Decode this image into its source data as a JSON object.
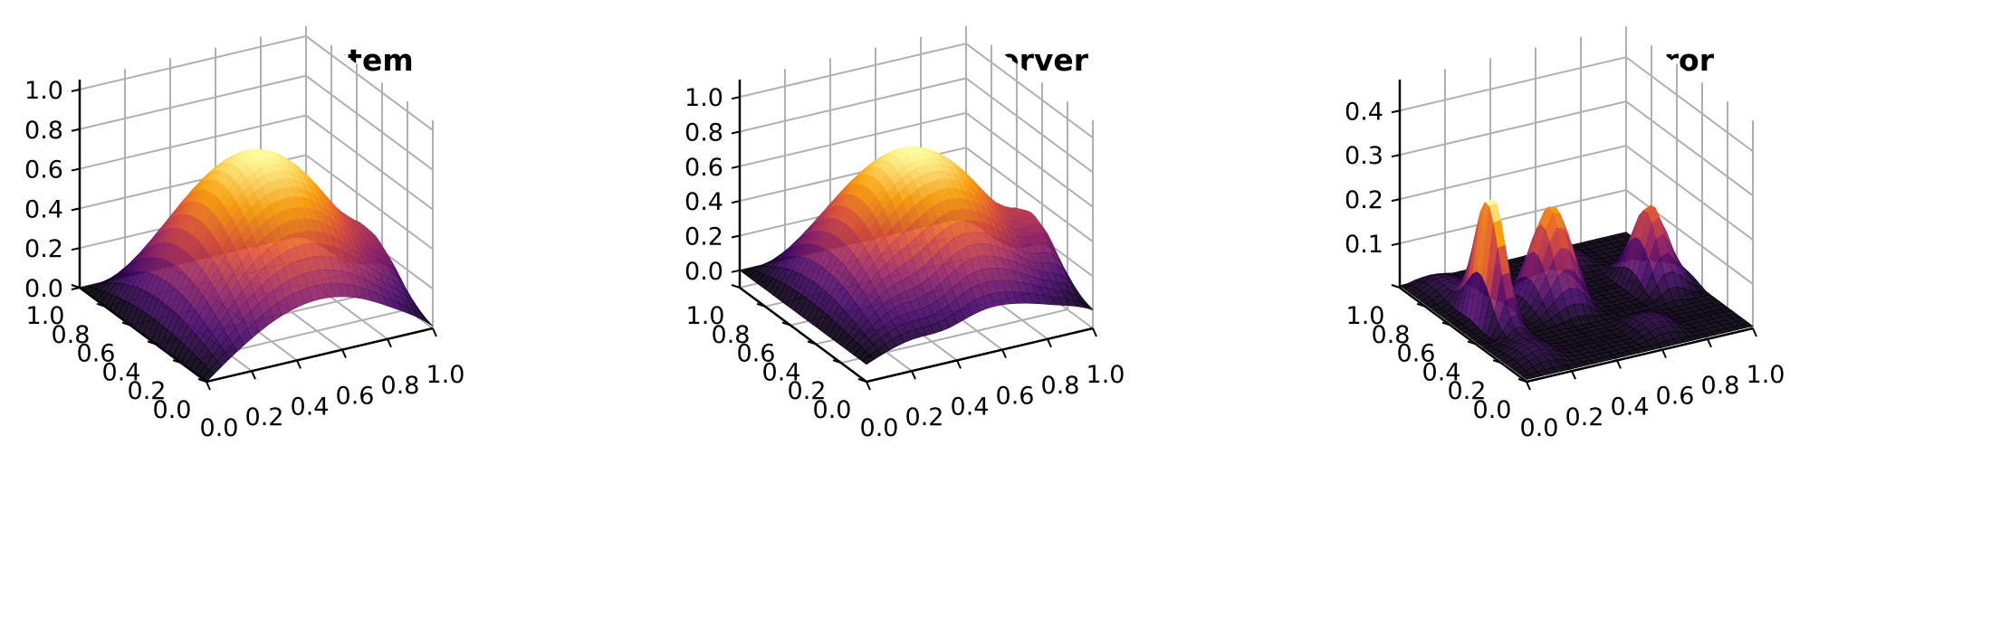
{
  "chart_data": [
    {
      "type": "surface",
      "title": "System",
      "x_ticks": [
        "0.0",
        "0.2",
        "0.4",
        "0.6",
        "0.8",
        "1.0"
      ],
      "y_ticks": [
        "0.0",
        "0.2",
        "0.4",
        "0.6",
        "0.8",
        "1.0"
      ],
      "z_ticks": [
        "0.0",
        "0.2",
        "0.4",
        "0.6",
        "0.8",
        "1.0"
      ],
      "xlim": [
        0,
        1
      ],
      "ylim": [
        0,
        1
      ],
      "zlim": [
        0,
        1.05
      ],
      "grid": true,
      "colormap": [
        "#000004",
        "#420a68",
        "#932667",
        "#dd513a",
        "#fca50a",
        "#fcffa4"
      ],
      "peak_value": 1.0
    },
    {
      "type": "surface",
      "title": "Observer",
      "x_ticks": [
        "0.0",
        "0.2",
        "0.4",
        "0.6",
        "0.8",
        "1.0"
      ],
      "y_ticks": [
        "0.0",
        "0.2",
        "0.4",
        "0.6",
        "0.8",
        "1.0"
      ],
      "z_ticks": [
        "0.0",
        "0.2",
        "0.4",
        "0.6",
        "0.8",
        "1.0"
      ],
      "xlim": [
        0,
        1
      ],
      "ylim": [
        0,
        1
      ],
      "zlim": [
        -0.1,
        1.1
      ],
      "grid": true,
      "colormap": [
        "#000004",
        "#420a68",
        "#932667",
        "#dd513a",
        "#fca50a",
        "#fcffa4"
      ],
      "peak_value": 1.05
    },
    {
      "type": "surface",
      "title": "Error",
      "x_ticks": [
        "0.0",
        "0.2",
        "0.4",
        "0.6",
        "0.8",
        "1.0"
      ],
      "y_ticks": [
        "0.0",
        "0.2",
        "0.4",
        "0.6",
        "0.8",
        "1.0"
      ],
      "z_ticks": [
        "0.1",
        "0.2",
        "0.3",
        "0.4"
      ],
      "xlim": [
        0,
        1
      ],
      "ylim": [
        0,
        1
      ],
      "zlim": [
        0,
        0.47
      ],
      "grid": true,
      "colormap": [
        "#000004",
        "#420a68",
        "#932667",
        "#dd513a",
        "#fca50a",
        "#fcffa4"
      ],
      "peak_value": 0.33
    }
  ]
}
